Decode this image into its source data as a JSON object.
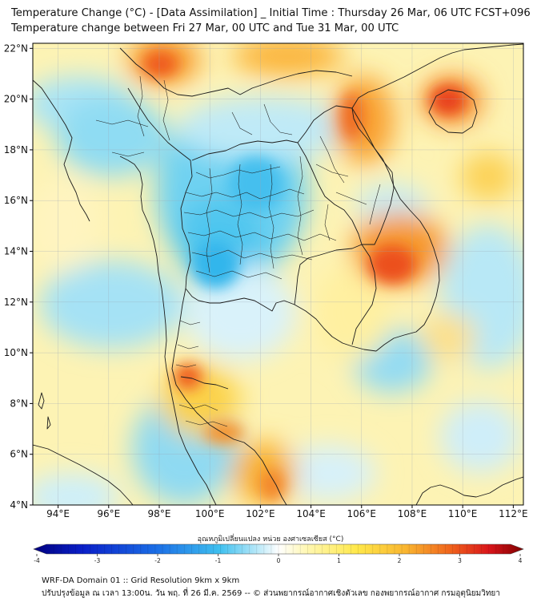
{
  "header": {
    "title_line1": "Temperature Change (°C) - [Data Assimilation] _ Initial Time : Thursday 26 Mar, 06 UTC FCST+096",
    "title_line2": "Temperature change between Fri 27 Mar, 00 UTC and Tue 31 Mar, 00 UTC"
  },
  "map": {
    "lat_labels": [
      "22°N",
      "20°N",
      "18°N",
      "16°N",
      "14°N",
      "12°N",
      "10°N",
      "8°N",
      "6°N",
      "4°N"
    ],
    "lat_values": [
      22,
      20,
      18,
      16,
      14,
      12,
      10,
      8,
      6,
      4
    ],
    "lon_labels": [
      "94°E",
      "96°E",
      "98°E",
      "100°E",
      "102°E",
      "104°E",
      "106°E",
      "108°E",
      "110°E",
      "112°E"
    ],
    "lon_values": [
      94,
      96,
      98,
      100,
      102,
      104,
      106,
      108,
      110,
      112
    ],
    "extent": {
      "lon_min": 93.0,
      "lon_max": 112.4,
      "lat_min": 4.0,
      "lat_max": 22.2
    }
  },
  "colorbar": {
    "label": "อุณหภูมิเปลี่ยนแปลง หน่วย องศาเซลเซียส (°C)",
    "tick_labels": [
      "-4",
      "-3",
      "-2",
      "-1",
      "0",
      "1",
      "2",
      "3",
      "4"
    ],
    "tick_values": [
      -4,
      -3,
      -2,
      -1,
      0,
      1,
      2,
      3,
      4
    ]
  },
  "footer": {
    "line1": "WRF-DA Domain 01 :: Grid Resolution 9km x 9km",
    "line2": "ปรับปรุงข้อมูล ณ เวลา 13:00น. วัน พฤ. ที่ 26 มี.ค. 2569 -- © ส่วนพยากรณ์อากาศเชิงตัวเลข กองพยากรณ์อากาศ กรมอุตุนิยมวิทยา"
  },
  "colors": {
    "cold_extreme": "#00007f",
    "cold": "#1b6ee6",
    "cool": "#5fd4f2",
    "neutral": "#ffffff",
    "warm": "#ffe84a",
    "hot": "#f5891f",
    "hot_extreme": "#7f0000"
  }
}
